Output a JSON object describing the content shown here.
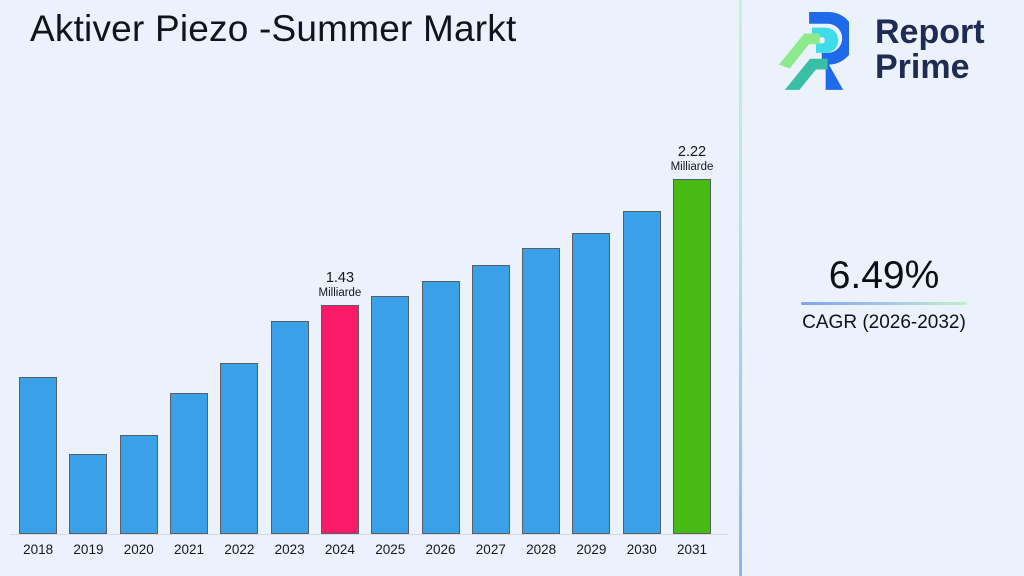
{
  "header": {
    "title": "Aktiver Piezo -Summer Markt"
  },
  "brand": {
    "name_line1": "Report",
    "name_line2": "Prime",
    "logo_colors": {
      "blue": "#1e6ae8",
      "cyan": "#3fdde8",
      "light_green": "#8ce98c",
      "teal": "#38bfa6",
      "text_navy": "#1e2b52"
    }
  },
  "cagr": {
    "value": "6.49%",
    "label": "CAGR (2026-2032)"
  },
  "chart_data": {
    "type": "bar",
    "title": "Aktiver Piezo -Summer Markt",
    "xlabel": "",
    "ylabel": "",
    "grid": false,
    "unit": "Milliarde",
    "categories": [
      "2018",
      "2019",
      "2020",
      "2021",
      "2022",
      "2023",
      "2024",
      "2025",
      "2026",
      "2027",
      "2028",
      "2029",
      "2030",
      "2031"
    ],
    "values": [
      0.98,
      0.5,
      0.62,
      0.88,
      1.07,
      1.33,
      1.43,
      1.49,
      1.58,
      1.68,
      1.79,
      1.88,
      2.02,
      2.22
    ],
    "ylim": [
      0,
      2.5
    ],
    "annotations": [
      {
        "category": "2024",
        "label": "1.43",
        "unit": "Milliarde"
      },
      {
        "category": "2031",
        "label": "2.22",
        "unit": "Milliarde"
      }
    ],
    "colors": {
      "default": "#3aa1e8",
      "2024": "#f91b67",
      "2031": "#47ba14"
    },
    "bar_border_color": "#585d66",
    "axis_line_color": "#d7dce4",
    "background_color": "#ecf2fb"
  }
}
